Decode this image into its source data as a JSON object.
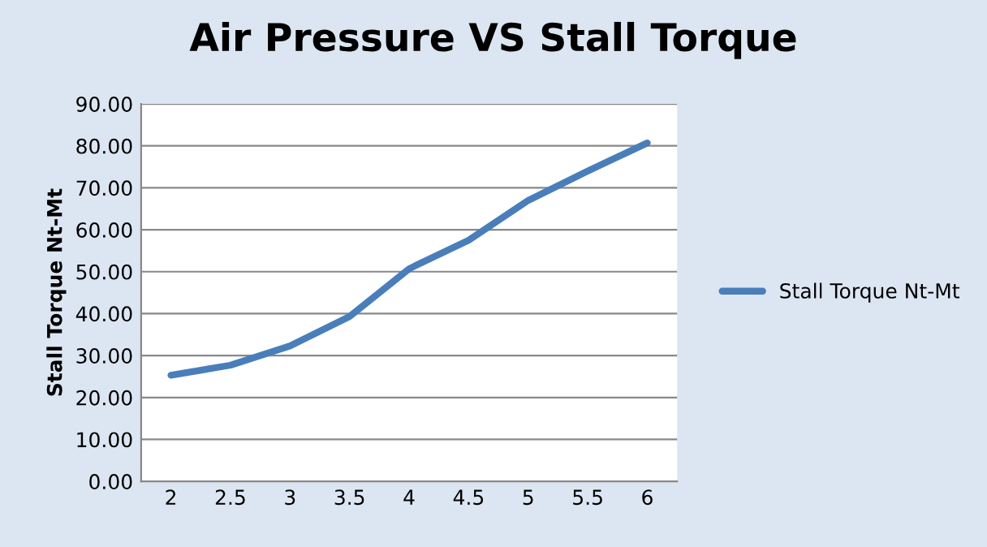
{
  "chart_data": {
    "type": "line",
    "title": "Air Pressure VS Stall Torque",
    "ylabel": "Stall Torque Nt-Mt",
    "categories": [
      "2",
      "2.5",
      "3",
      "3.5",
      "4",
      "4.5",
      "5",
      "5.5",
      "6"
    ],
    "series": [
      {
        "name": "Stall Torque Nt-Mt",
        "color": "#4a7ebb",
        "values": [
          25.3,
          27.7,
          32.3,
          39.3,
          50.7,
          57.5,
          67.0,
          74.0,
          80.7
        ]
      }
    ],
    "ylim": [
      0,
      90
    ],
    "yticks": [
      {
        "value": 0,
        "label": "0.00"
      },
      {
        "value": 10,
        "label": "10.00"
      },
      {
        "value": 20,
        "label": "20.00"
      },
      {
        "value": 30,
        "label": "30.00"
      },
      {
        "value": 40,
        "label": "40.00"
      },
      {
        "value": 50,
        "label": "50.00"
      },
      {
        "value": 60,
        "label": "60.00"
      },
      {
        "value": 70,
        "label": "70.00"
      },
      {
        "value": 80,
        "label": "80.00"
      },
      {
        "value": 90,
        "label": "90.00"
      }
    ],
    "grid": "y",
    "legend": "right",
    "marker": "none",
    "line_style": "solid"
  }
}
